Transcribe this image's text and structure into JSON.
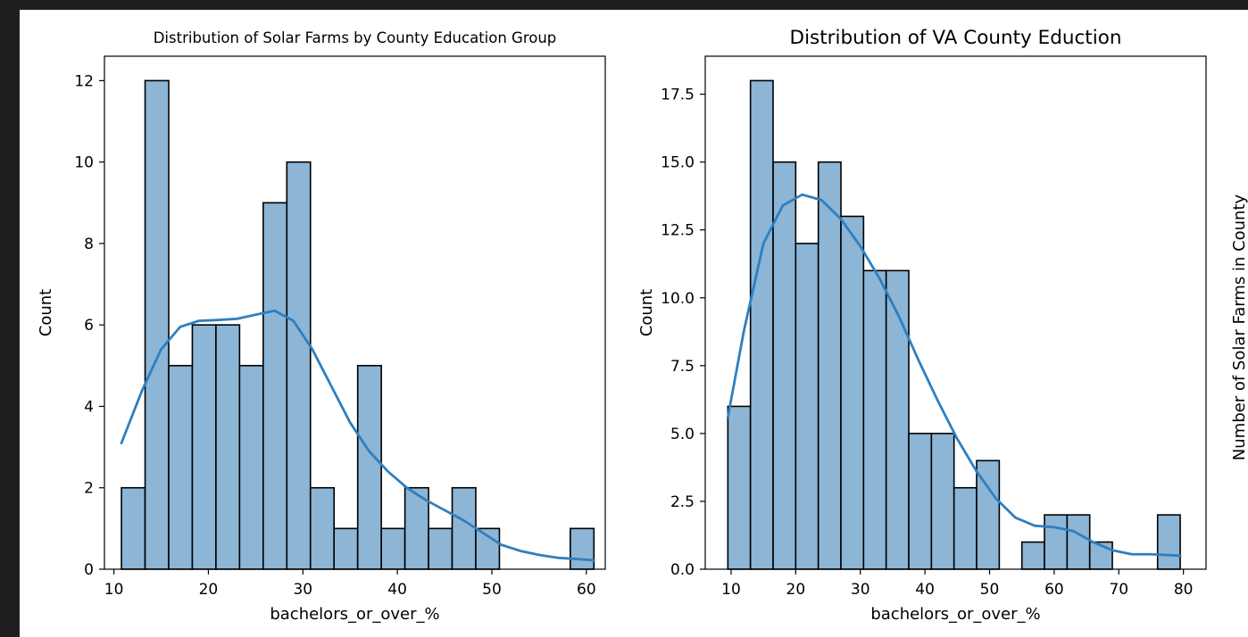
{
  "colors": {
    "background": "#1f1f1f",
    "figure": "#ffffff",
    "bar_fill": "#8cb5d6",
    "bar_edge": "#000000",
    "kde_line": "#2f7fbf"
  },
  "extra_label": "Number of Solar Farms in County",
  "chart_data": [
    {
      "type": "bar",
      "title": "Distribution of Solar Farms by County Education Group",
      "xlabel": "bachelors_or_over_%",
      "ylabel": "Count",
      "xlim": [
        9.0,
        62.0
      ],
      "ylim": [
        0,
        12.6
      ],
      "xticks": [
        10,
        20,
        30,
        40,
        50,
        60
      ],
      "xtick_labels": [
        "10",
        "20",
        "30",
        "40",
        "50",
        "60"
      ],
      "yticks": [
        0,
        2,
        4,
        6,
        8,
        10,
        12
      ],
      "ytick_labels": [
        "0",
        "2",
        "4",
        "6",
        "8",
        "10",
        "12"
      ],
      "bin_edges": [
        10.8,
        13.3,
        15.8,
        18.3,
        20.8,
        23.3,
        25.8,
        28.3,
        30.8,
        33.3,
        35.8,
        38.3,
        40.8,
        43.3,
        45.8,
        48.3,
        50.8,
        53.3,
        55.8,
        58.3,
        60.8
      ],
      "values": [
        2,
        12,
        5,
        6,
        6,
        5,
        9,
        10,
        2,
        1,
        5,
        1,
        2,
        1,
        2,
        1,
        0,
        0,
        0,
        1
      ],
      "kde": {
        "x": [
          10.8,
          13,
          15,
          17,
          19,
          21,
          23,
          25,
          27,
          29,
          31,
          33,
          35,
          37,
          39,
          41,
          43,
          45,
          47,
          49,
          51,
          53,
          55,
          57,
          59,
          60.8
        ],
        "y": [
          3.1,
          4.4,
          5.4,
          5.95,
          6.1,
          6.12,
          6.15,
          6.25,
          6.35,
          6.1,
          5.4,
          4.5,
          3.6,
          2.9,
          2.4,
          2.0,
          1.7,
          1.45,
          1.2,
          0.9,
          0.6,
          0.45,
          0.35,
          0.28,
          0.25,
          0.22
        ]
      },
      "grid": false
    },
    {
      "type": "bar",
      "title": "Distribution of VA County Eduction",
      "xlabel": "bachelors_or_over_%",
      "ylabel": "Count",
      "xlim": [
        6.0,
        83.5
      ],
      "ylim": [
        0,
        18.9
      ],
      "xticks": [
        10,
        20,
        30,
        40,
        50,
        60,
        70,
        80
      ],
      "xtick_labels": [
        "10",
        "20",
        "30",
        "40",
        "50",
        "60",
        "70",
        "80"
      ],
      "yticks": [
        0,
        2.5,
        5,
        7.5,
        10,
        12.5,
        15,
        17.5
      ],
      "ytick_labels": [
        "0.0",
        "2.5",
        "5.0",
        "7.5",
        "10.0",
        "12.5",
        "15.0",
        "17.5"
      ],
      "bin_edges": [
        9.5,
        13.0,
        16.5,
        20.0,
        23.5,
        27.0,
        30.5,
        34.0,
        37.5,
        41.0,
        44.5,
        48.0,
        51.5,
        55.0,
        58.5,
        62.0,
        65.5,
        69.0,
        72.5,
        76.0,
        79.5
      ],
      "values": [
        6,
        18,
        15,
        12,
        15,
        13,
        11,
        11,
        5,
        5,
        3,
        4,
        0,
        1,
        2,
        2,
        1,
        0,
        0,
        2
      ],
      "kde": {
        "x": [
          9.5,
          12,
          15,
          18,
          21,
          24,
          27,
          30,
          33,
          36,
          39,
          42,
          45,
          48,
          51,
          54,
          57,
          60,
          63,
          66,
          69,
          72,
          75,
          79.5
        ],
        "y": [
          5.6,
          8.8,
          12.0,
          13.4,
          13.8,
          13.6,
          12.9,
          11.9,
          10.7,
          9.3,
          7.7,
          6.2,
          4.8,
          3.6,
          2.6,
          1.9,
          1.6,
          1.55,
          1.4,
          1.0,
          0.7,
          0.55,
          0.55,
          0.5
        ]
      },
      "grid": false
    }
  ]
}
